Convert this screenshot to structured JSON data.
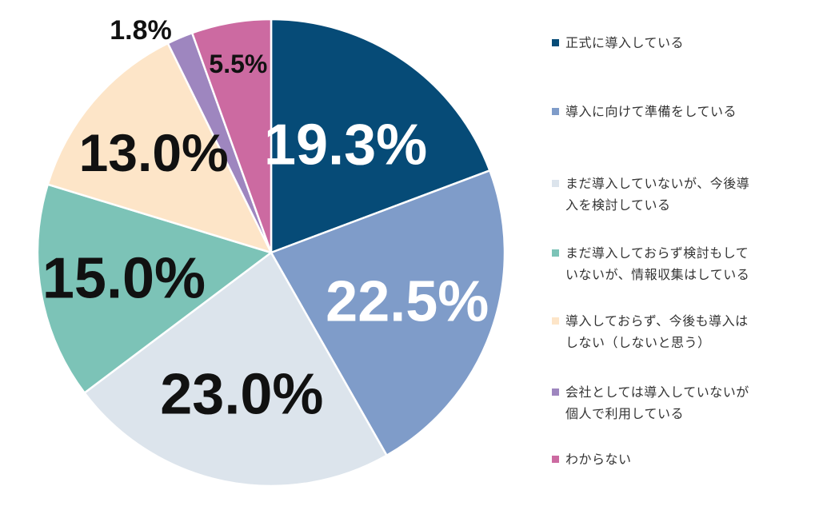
{
  "chart_data": {
    "type": "pie",
    "slices": [
      {
        "label": "正式に導入している",
        "value": 19.3,
        "value_label": "19.3%",
        "color": "#064b77",
        "text_color": "#ffffff"
      },
      {
        "label": "導入に向けて準備をしている",
        "value": 22.5,
        "value_label": "22.5%",
        "color": "#7f9cc9",
        "text_color": "#ffffff"
      },
      {
        "label": "まだ導入していないが、今後導入を検討している",
        "value": 23.0,
        "value_label": "23.0%",
        "color": "#dce4ec",
        "text_color": "#111111"
      },
      {
        "label": "まだ導入しておらず検討もしていないが、情報収集はしている",
        "value": 15.0,
        "value_label": "15.0%",
        "color": "#7cc3b7",
        "text_color": "#111111"
      },
      {
        "label": "導入しておらず、今後も導入はしない（しないと思う）",
        "value": 13.0,
        "value_label": "13.0%",
        "color": "#fde5c8",
        "text_color": "#111111"
      },
      {
        "label": "会社としては導入していないが個人で利用している",
        "value": 1.8,
        "value_label": "1.8%",
        "color": "#9e86bf",
        "text_color": "#111111"
      },
      {
        "label": "わからない",
        "value": 5.5,
        "value_label": "5.5%",
        "color": "#cc6aa1",
        "text_color": "#111111"
      }
    ],
    "start_angle_deg": 0,
    "direction": "clockwise",
    "legend_position": "right"
  },
  "legend": {
    "items": [
      {
        "label": "正式に導入している"
      },
      {
        "label": "導入に向けて準備をしている"
      },
      {
        "label": "まだ導入していないが、今後導\n入を検討している"
      },
      {
        "label": "まだ導入しておらず検討もして\nいないが、情報収集はしている"
      },
      {
        "label": "導入しておらず、今後も導入は\nしない（しないと思う）"
      },
      {
        "label": "会社としては導入していないが\n個人で利用している"
      },
      {
        "label": "わからない"
      }
    ]
  }
}
